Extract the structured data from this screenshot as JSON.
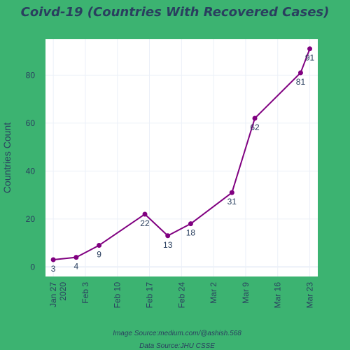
{
  "chart_data": {
    "type": "line",
    "title": "Coivd-19 (Countries With Recovered Cases)",
    "ylabel": "Countries Count",
    "xlabel": "",
    "x": [
      "2020-01-27",
      "2020-02-01",
      "2020-02-06",
      "2020-02-16",
      "2020-02-21",
      "2020-02-26",
      "2020-03-06",
      "2020-03-11",
      "2020-03-21",
      "2020-03-23"
    ],
    "values": [
      3,
      4,
      9,
      22,
      13,
      18,
      31,
      62,
      81,
      91
    ],
    "x_ticks": [
      {
        "date": "2020-01-27",
        "label": "Jan 27",
        "sublabel": "2020"
      },
      {
        "date": "2020-02-03",
        "label": "Feb 3"
      },
      {
        "date": "2020-02-10",
        "label": "Feb 10"
      },
      {
        "date": "2020-02-17",
        "label": "Feb 17"
      },
      {
        "date": "2020-02-24",
        "label": "Feb 24"
      },
      {
        "date": "2020-03-02",
        "label": "Mar 2"
      },
      {
        "date": "2020-03-09",
        "label": "Mar 9"
      },
      {
        "date": "2020-03-16",
        "label": "Mar 16"
      },
      {
        "date": "2020-03-23",
        "label": "Mar 23"
      }
    ],
    "y_ticks": [
      0,
      20,
      40,
      60,
      80
    ],
    "ylim": [
      -4,
      95
    ],
    "grid": true,
    "line_color": "#800080",
    "annotations": [
      "Image Source:medium.com/@ashish.568",
      "Data Source:JHU CSSE"
    ]
  },
  "colors": {
    "background": "#3cb371",
    "plot_background": "#ffffff",
    "text": "#2a3f5f",
    "grid": "#ebf0f8"
  }
}
